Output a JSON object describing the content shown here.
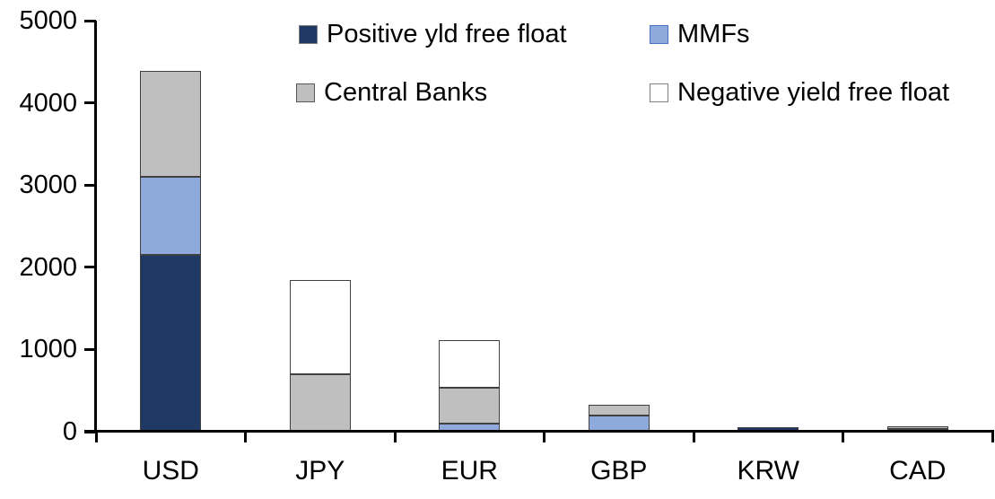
{
  "chart_data": {
    "type": "bar",
    "subtype": "stacked",
    "title": "",
    "xlabel": "",
    "ylabel": "",
    "categories": [
      "USD",
      "JPY",
      "EUR",
      "GBP",
      "KRW",
      "CAD"
    ],
    "series": [
      {
        "name": "Positive yld free float",
        "color": "#1F3864",
        "swatch_border": "#7F7F7F",
        "values": [
          2150,
          0,
          0,
          0,
          50,
          30
        ]
      },
      {
        "name": "MMFs",
        "color": "#8EA9DB",
        "swatch_border": "#4472C4",
        "values": [
          950,
          0,
          100,
          200,
          0,
          0
        ]
      },
      {
        "name": "Central Banks",
        "color": "#BFBFBF",
        "swatch_border": "#595959",
        "values": [
          1290,
          700,
          430,
          125,
          0,
          40
        ]
      },
      {
        "name": "Negative yield free float",
        "color": "#FFFFFF",
        "swatch_border": "#808080",
        "values": [
          0,
          1150,
          580,
          0,
          0,
          0
        ]
      }
    ],
    "totals": {
      "USD": 4390,
      "JPY": 1850,
      "EUR": 1110,
      "GBP": 325,
      "KRW": 50,
      "CAD": 70
    },
    "ylim": [
      0,
      5000
    ],
    "yticks": [
      0,
      1000,
      2000,
      3000,
      4000,
      5000
    ],
    "grid": false,
    "legend_position": "top",
    "legend_layout": "2x2",
    "axis_color": "#000000",
    "segment_border_color": "#404040",
    "background_color": "#FFFFFF",
    "text_color": "#000000"
  }
}
